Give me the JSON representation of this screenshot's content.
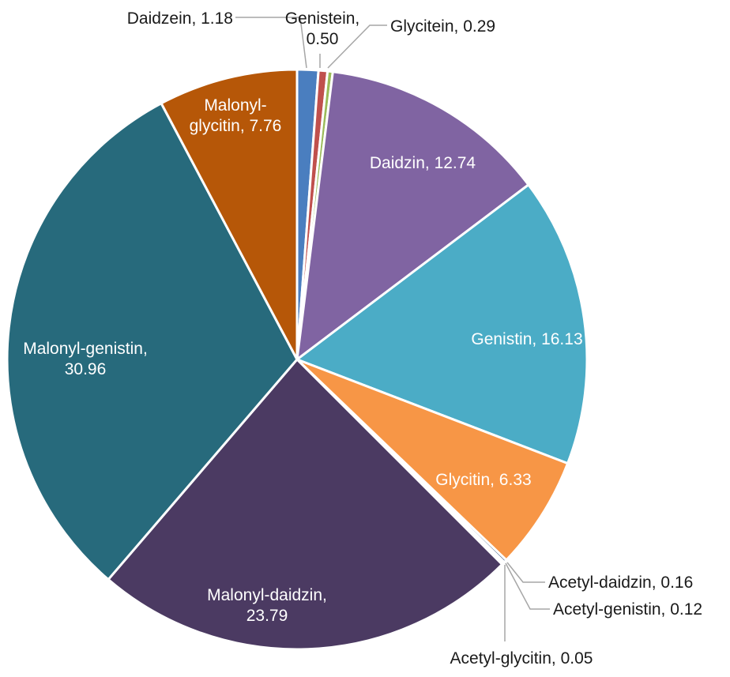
{
  "chart_data": {
    "type": "pie",
    "title": "",
    "series": [
      {
        "name": "Daidzein",
        "value": 1.18,
        "color": "#4a7ebf",
        "label_lines": [
          "Daidzein, 1.18"
        ],
        "label_inside": false
      },
      {
        "name": "Genistein",
        "value": 0.5,
        "color": "#c0504d",
        "label_lines": [
          "Genistein,",
          "0.50"
        ],
        "label_inside": false
      },
      {
        "name": "Glycitein",
        "value": 0.29,
        "color": "#9bbb59",
        "label_lines": [
          "Glycitein, 0.29"
        ],
        "label_inside": false
      },
      {
        "name": "Daidzin",
        "value": 12.74,
        "color": "#8064a2",
        "label_lines": [
          "Daidzin, 12.74"
        ],
        "label_inside": true
      },
      {
        "name": "Genistin",
        "value": 16.13,
        "color": "#4bacc6",
        "label_lines": [
          "Genistin, 16.13"
        ],
        "label_inside": true
      },
      {
        "name": "Glycitin",
        "value": 6.33,
        "color": "#f79646",
        "label_lines": [
          "Glycitin, 6.33"
        ],
        "label_inside": true
      },
      {
        "name": "Acetyl-daidzin",
        "value": 0.16,
        "color": "#2c4d75",
        "label_lines": [
          "Acetyl-daidzin, 0.16"
        ],
        "label_inside": false
      },
      {
        "name": "Acetyl-genistin",
        "value": 0.12,
        "color": "#772c2a",
        "label_lines": [
          "Acetyl-genistin, 0.12"
        ],
        "label_inside": false
      },
      {
        "name": "Acetyl-glycitin",
        "value": 0.05,
        "color": "#5f7530",
        "label_lines": [
          "Acetyl-glycitin,  0.05"
        ],
        "label_inside": false
      },
      {
        "name": "Malonyl-daidzin",
        "value": 23.79,
        "color": "#4b3a62",
        "label_lines": [
          "Malonyl-daidzin,",
          "23.79"
        ],
        "label_inside": true
      },
      {
        "name": "Malonyl-genistin",
        "value": 30.96,
        "color": "#276a7c",
        "label_lines": [
          "Malonyl-genistin,",
          "30.96"
        ],
        "label_inside": true
      },
      {
        "name": "Malonyl-glycitin",
        "value": 7.76,
        "color": "#b65708",
        "label_lines": [
          "Malonyl-",
          "glycitin, 7.76"
        ],
        "label_inside": true
      }
    ]
  }
}
